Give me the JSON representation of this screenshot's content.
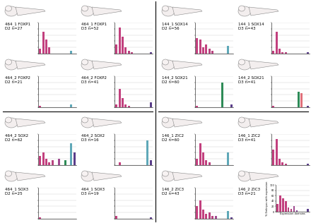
{
  "chart_data": [
    {
      "type": "bar",
      "title": "464_1 FOXP1",
      "subtitle": "D2 n=27",
      "categories": [
        null,
        null,
        null,
        null,
        null,
        null,
        null,
        null,
        null,
        null,
        null,
        null
      ],
      "values": [
        15,
        70,
        45,
        20,
        0,
        0,
        0,
        0,
        0,
        0,
        10,
        0
      ],
      "colors": [
        "#c2407e",
        "#c2407e",
        "#c2407e",
        "#c2407e",
        "#b8437f",
        "#b8437f",
        "#a04a90",
        "#8a4a9a",
        "#2e8b57",
        "#e0707a",
        "#5fa8b8",
        "#5a3d8a"
      ],
      "ylim": [
        0,
        100
      ],
      "yticks": [
        0,
        20,
        40,
        60,
        80,
        100
      ],
      "grid": true,
      "tick_labels": false
    },
    {
      "type": "bar",
      "title": "464_1 FOXP1",
      "subtitle": "D3 n=52",
      "categories": [
        null,
        null,
        null,
        null,
        null,
        null,
        null,
        null,
        null,
        null,
        null,
        null
      ],
      "values": [
        30,
        85,
        55,
        20,
        10,
        5,
        0,
        0,
        0,
        0,
        0,
        5
      ],
      "colors": [
        "#c2407e",
        "#c2407e",
        "#c2407e",
        "#c2407e",
        "#b8437f",
        "#b8437f",
        "#a04a90",
        "#8a4a9a",
        "#2e8b57",
        "#e0707a",
        "#5fa8b8",
        "#5a3d8a"
      ],
      "ylim": [
        0,
        100
      ],
      "yticks": [
        0,
        20,
        40,
        60,
        80,
        100
      ],
      "grid": true,
      "tick_labels": false
    },
    {
      "type": "bar",
      "title": "144_1 SOX14",
      "subtitle": "D2 n=56",
      "categories": [
        null,
        null,
        null,
        null,
        null,
        null,
        null,
        null,
        null,
        null,
        null,
        null
      ],
      "values": [
        50,
        45,
        20,
        30,
        15,
        10,
        0,
        0,
        0,
        0,
        25,
        0
      ],
      "colors": [
        "#c2407e",
        "#c2407e",
        "#c2407e",
        "#c2407e",
        "#b8437f",
        "#b8437f",
        "#a04a90",
        "#8a4a9a",
        "#2e8b57",
        "#e0707a",
        "#5fa8b8",
        "#5a3d8a"
      ],
      "ylim": [
        0,
        100
      ],
      "yticks": [
        0,
        20,
        40,
        60,
        80,
        100
      ],
      "grid": true,
      "tick_labels": false
    },
    {
      "type": "bar",
      "title": "144_1 SOX14",
      "subtitle": "D3 n=43",
      "categories": [
        null,
        null,
        null,
        null,
        null,
        null,
        null,
        null,
        null,
        null,
        null,
        null
      ],
      "values": [
        10,
        70,
        15,
        5,
        5,
        0,
        0,
        0,
        0,
        0,
        0,
        5
      ],
      "colors": [
        "#c2407e",
        "#c2407e",
        "#c2407e",
        "#c2407e",
        "#b8437f",
        "#b8437f",
        "#a04a90",
        "#8a4a9a",
        "#2e8b57",
        "#e0707a",
        "#5fa8b8",
        "#5a3d8a"
      ],
      "ylim": [
        0,
        100
      ],
      "yticks": [
        0,
        20,
        40,
        60,
        80,
        100
      ],
      "grid": true,
      "tick_labels": false
    },
    {
      "type": "bar",
      "title": "464_2 FOXP2",
      "subtitle": "D2 n=21",
      "categories": [
        null,
        null,
        null,
        null,
        null,
        null,
        null,
        null,
        null,
        null,
        null,
        null
      ],
      "values": [
        5,
        0,
        0,
        0,
        0,
        0,
        0,
        0,
        0,
        0,
        10,
        0
      ],
      "colors": [
        "#c2407e",
        "#c2407e",
        "#c2407e",
        "#c2407e",
        "#b8437f",
        "#b8437f",
        "#a04a90",
        "#8a4a9a",
        "#2e8b57",
        "#e0707a",
        "#5fa8b8",
        "#5a3d8a"
      ],
      "ylim": [
        0,
        100
      ],
      "yticks": [
        0,
        20,
        40,
        60,
        80,
        100
      ],
      "grid": true,
      "tick_labels": false
    },
    {
      "type": "bar",
      "title": "464_2 FOXP2",
      "subtitle": "D3 n=41",
      "categories": [
        null,
        null,
        null,
        null,
        null,
        null,
        null,
        null,
        null,
        null,
        null,
        null
      ],
      "values": [
        10,
        60,
        30,
        10,
        5,
        0,
        0,
        0,
        0,
        0,
        0,
        15
      ],
      "colors": [
        "#c2407e",
        "#c2407e",
        "#c2407e",
        "#c2407e",
        "#b8437f",
        "#b8437f",
        "#a04a90",
        "#8a4a9a",
        "#2e8b57",
        "#e0707a",
        "#5fa8b8",
        "#5a3d8a"
      ],
      "ylim": [
        0,
        100
      ],
      "yticks": [
        0,
        20,
        40,
        60,
        80,
        100
      ],
      "grid": true,
      "tick_labels": false
    },
    {
      "type": "bar",
      "title": "144_2 SOX21",
      "subtitle": "D2 n=60",
      "categories": [
        null,
        null,
        null,
        null,
        null,
        null,
        null,
        null,
        null,
        null,
        null,
        null
      ],
      "values": [
        5,
        0,
        0,
        0,
        0,
        0,
        0,
        0,
        80,
        0,
        0,
        10
      ],
      "colors": [
        "#c2407e",
        "#c2407e",
        "#c2407e",
        "#c2407e",
        "#b8437f",
        "#b8437f",
        "#a04a90",
        "#8a4a9a",
        "#2e8b57",
        "#e0707a",
        "#5fa8b8",
        "#5a3d8a"
      ],
      "ylim": [
        0,
        100
      ],
      "yticks": [
        0,
        20,
        40,
        60,
        80,
        100
      ],
      "grid": true,
      "tick_labels": false
    },
    {
      "type": "bar",
      "title": "144_2 SOX21",
      "subtitle": "D3 n=41",
      "categories": [
        null,
        null,
        null,
        null,
        null,
        null,
        null,
        null,
        null,
        null,
        null,
        null
      ],
      "values": [
        5,
        0,
        0,
        0,
        0,
        0,
        0,
        0,
        50,
        45,
        0,
        5
      ],
      "colors": [
        "#c2407e",
        "#c2407e",
        "#c2407e",
        "#c2407e",
        "#b8437f",
        "#b8437f",
        "#a04a90",
        "#8a4a9a",
        "#2e8b57",
        "#e0707a",
        "#5fa8b8",
        "#5a3d8a"
      ],
      "ylim": [
        0,
        100
      ],
      "yticks": [
        0,
        20,
        40,
        60,
        80,
        100
      ],
      "grid": true,
      "tick_labels": false
    },
    {
      "type": "bar",
      "title": "464_2 SOX2",
      "subtitle": "D2 n=62",
      "categories": [
        null,
        null,
        null,
        null,
        null,
        null,
        null,
        null,
        null,
        null,
        null,
        null
      ],
      "values": [
        30,
        40,
        20,
        10,
        15,
        0,
        20,
        0,
        15,
        0,
        70,
        40
      ],
      "colors": [
        "#c2407e",
        "#c2407e",
        "#c2407e",
        "#c2407e",
        "#b8437f",
        "#b8437f",
        "#a04a90",
        "#8a4a9a",
        "#2e8b57",
        "#e0707a",
        "#5fa8b8",
        "#5a3d8a"
      ],
      "ylim": [
        0,
        100
      ],
      "yticks": [
        0,
        20,
        40,
        60,
        80,
        100
      ],
      "grid": true,
      "tick_labels": false
    },
    {
      "type": "bar",
      "title": "464_2 SOX2",
      "subtitle": "D3 n=16",
      "categories": [
        null,
        null,
        null,
        null,
        null,
        null,
        null,
        null,
        null,
        null,
        null,
        null
      ],
      "values": [
        0,
        10,
        0,
        0,
        0,
        0,
        0,
        0,
        0,
        0,
        80,
        15
      ],
      "colors": [
        "#c2407e",
        "#c2407e",
        "#c2407e",
        "#c2407e",
        "#b8437f",
        "#b8437f",
        "#a04a90",
        "#8a4a9a",
        "#2e8b57",
        "#e0707a",
        "#5fa8b8",
        "#5a3d8a"
      ],
      "ylim": [
        0,
        100
      ],
      "yticks": [
        0,
        20,
        40,
        60,
        80,
        100
      ],
      "grid": true,
      "tick_labels": false
    },
    {
      "type": "bar",
      "title": "146_1 ZIC2",
      "subtitle": "D2 n=60",
      "categories": [
        null,
        null,
        null,
        null,
        null,
        null,
        null,
        null,
        null,
        null,
        null,
        null
      ],
      "values": [
        20,
        70,
        40,
        15,
        10,
        0,
        0,
        0,
        0,
        0,
        40,
        0
      ],
      "colors": [
        "#c2407e",
        "#c2407e",
        "#c2407e",
        "#c2407e",
        "#b8437f",
        "#b8437f",
        "#a04a90",
        "#8a4a9a",
        "#2e8b57",
        "#e0707a",
        "#5fa8b8",
        "#5a3d8a"
      ],
      "ylim": [
        0,
        100
      ],
      "yticks": [
        0,
        20,
        40,
        60,
        80,
        100
      ],
      "grid": true,
      "tick_labels": false
    },
    {
      "type": "bar",
      "title": "146_1 ZIC2",
      "subtitle": "D3 n=41",
      "categories": [
        null,
        null,
        null,
        null,
        null,
        null,
        null,
        null,
        null,
        null,
        null,
        null
      ],
      "values": [
        50,
        85,
        20,
        10,
        5,
        0,
        0,
        0,
        0,
        0,
        0,
        5
      ],
      "colors": [
        "#c2407e",
        "#c2407e",
        "#c2407e",
        "#c2407e",
        "#b8437f",
        "#b8437f",
        "#a04a90",
        "#8a4a9a",
        "#2e8b57",
        "#e0707a",
        "#5fa8b8",
        "#5a3d8a"
      ],
      "ylim": [
        0,
        100
      ],
      "yticks": [
        0,
        20,
        40,
        60,
        80,
        100
      ],
      "grid": true,
      "tick_labels": false
    },
    {
      "type": "bar",
      "title": "464_1 SOX3",
      "subtitle": "D2 n=25",
      "categories": [
        null,
        null,
        null,
        null,
        null,
        null,
        null,
        null,
        null,
        null,
        null,
        null
      ],
      "values": [
        5,
        0,
        0,
        0,
        0,
        0,
        0,
        0,
        0,
        0,
        0,
        0
      ],
      "colors": [
        "#c2407e",
        "#c2407e",
        "#c2407e",
        "#c2407e",
        "#b8437f",
        "#b8437f",
        "#a04a90",
        "#8a4a9a",
        "#2e8b57",
        "#e0707a",
        "#5fa8b8",
        "#5a3d8a"
      ],
      "ylim": [
        0,
        100
      ],
      "yticks": [
        0,
        20,
        40,
        60,
        80,
        100
      ],
      "grid": true,
      "tick_labels": false
    },
    {
      "type": "bar",
      "title": "464_1 SOX3",
      "subtitle": "D3 n=19",
      "categories": [
        null,
        null,
        null,
        null,
        null,
        null,
        null,
        null,
        null,
        null,
        null,
        null
      ],
      "values": [
        10,
        0,
        0,
        0,
        0,
        0,
        0,
        0,
        0,
        0,
        0,
        5
      ],
      "colors": [
        "#c2407e",
        "#c2407e",
        "#c2407e",
        "#c2407e",
        "#b8437f",
        "#b8437f",
        "#a04a90",
        "#8a4a9a",
        "#2e8b57",
        "#e0707a",
        "#5fa8b8",
        "#5a3d8a"
      ],
      "ylim": [
        0,
        100
      ],
      "yticks": [
        0,
        20,
        40,
        60,
        80,
        100
      ],
      "grid": true,
      "tick_labels": false
    },
    {
      "type": "bar",
      "title": "146_2 ZIC3",
      "subtitle": "D2 n=43",
      "categories": [
        null,
        null,
        null,
        null,
        null,
        null,
        null,
        null,
        null,
        null,
        null,
        null
      ],
      "values": [
        40,
        60,
        30,
        15,
        20,
        10,
        10,
        0,
        0,
        0,
        25,
        5
      ],
      "colors": [
        "#c2407e",
        "#c2407e",
        "#c2407e",
        "#c2407e",
        "#b8437f",
        "#b8437f",
        "#a04a90",
        "#8a4a9a",
        "#2e8b57",
        "#e0707a",
        "#5fa8b8",
        "#5a3d8a"
      ],
      "ylim": [
        0,
        100
      ],
      "yticks": [
        0,
        20,
        40,
        60,
        80,
        100
      ],
      "grid": true,
      "tick_labels": false
    },
    {
      "type": "bar",
      "title": "146_2 ZIC3",
      "subtitle": "D3 n=21",
      "xlabel": "Expression domains",
      "ylabel": "% Embryos with expression",
      "categories": [
        null,
        null,
        null,
        null,
        null,
        null,
        null,
        null,
        null,
        null,
        null,
        null
      ],
      "values": [
        30,
        60,
        50,
        40,
        15,
        10,
        20,
        5,
        0,
        0,
        0,
        10
      ],
      "colors": [
        "#c2407e",
        "#c2407e",
        "#c2407e",
        "#c2407e",
        "#b8437f",
        "#b8437f",
        "#a04a90",
        "#8a4a9a",
        "#2e8b57",
        "#e0707a",
        "#5fa8b8",
        "#5a3d8a"
      ],
      "ylim": [
        0,
        100
      ],
      "yticks": [
        0,
        20,
        40,
        60,
        80,
        100
      ],
      "grid": true,
      "tick_labels": "y"
    }
  ]
}
